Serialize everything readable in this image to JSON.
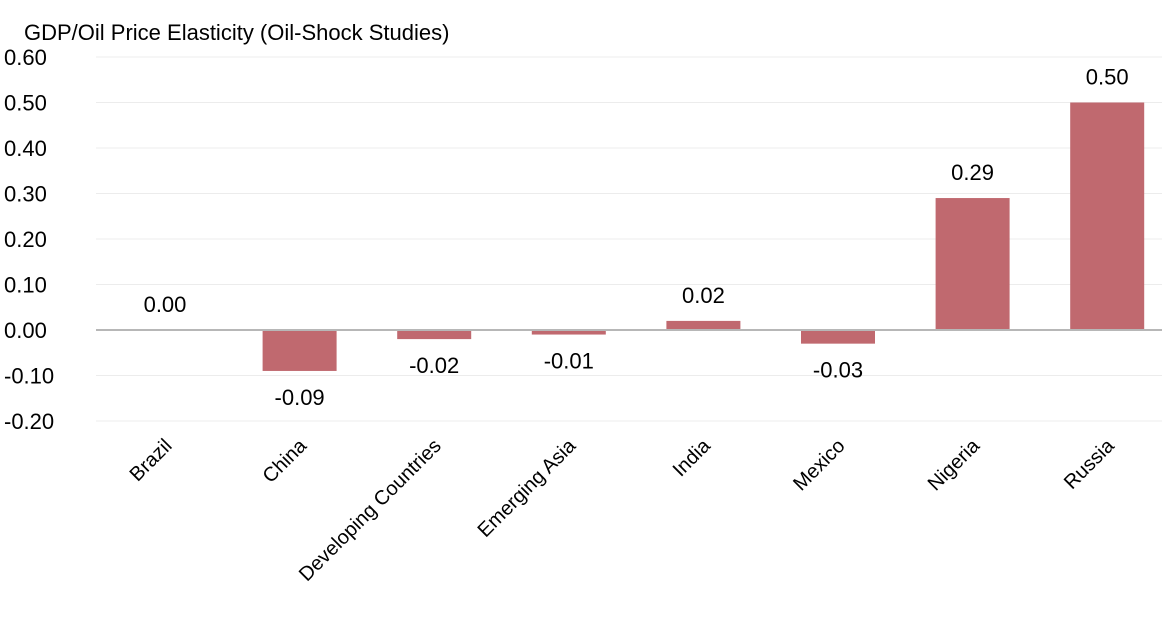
{
  "chart_data": {
    "type": "bar",
    "title": "GDP/Oil Price Elasticity (Oil-Shock Studies)",
    "xlabel": "",
    "ylabel": "",
    "categories": [
      "Brazil",
      "China",
      "Developing Countries",
      "Emerging Asia",
      "India",
      "Mexico",
      "Nigeria",
      "Russia"
    ],
    "values": [
      0.0,
      -0.09,
      -0.02,
      -0.01,
      0.02,
      -0.03,
      0.29,
      0.5
    ],
    "data_labels": [
      "0.00",
      "-0.09",
      "-0.02",
      "-0.01",
      "0.02",
      "-0.03",
      "0.29",
      "0.50"
    ],
    "ylim": [
      -0.2,
      0.6
    ],
    "yticks": [
      0.6,
      0.5,
      0.4,
      0.3,
      0.2,
      0.1,
      0.0,
      -0.1,
      -0.2
    ],
    "ytick_labels": [
      "0.60",
      "0.50",
      "0.40",
      "0.30",
      "0.20",
      "0.10",
      "0.00",
      "-0.10",
      "-0.20"
    ],
    "grid": true,
    "legend": "none",
    "bar_color": "#c0696f",
    "gridline_color": "#ececec",
    "zero_line_color": "#b7b7b7"
  }
}
